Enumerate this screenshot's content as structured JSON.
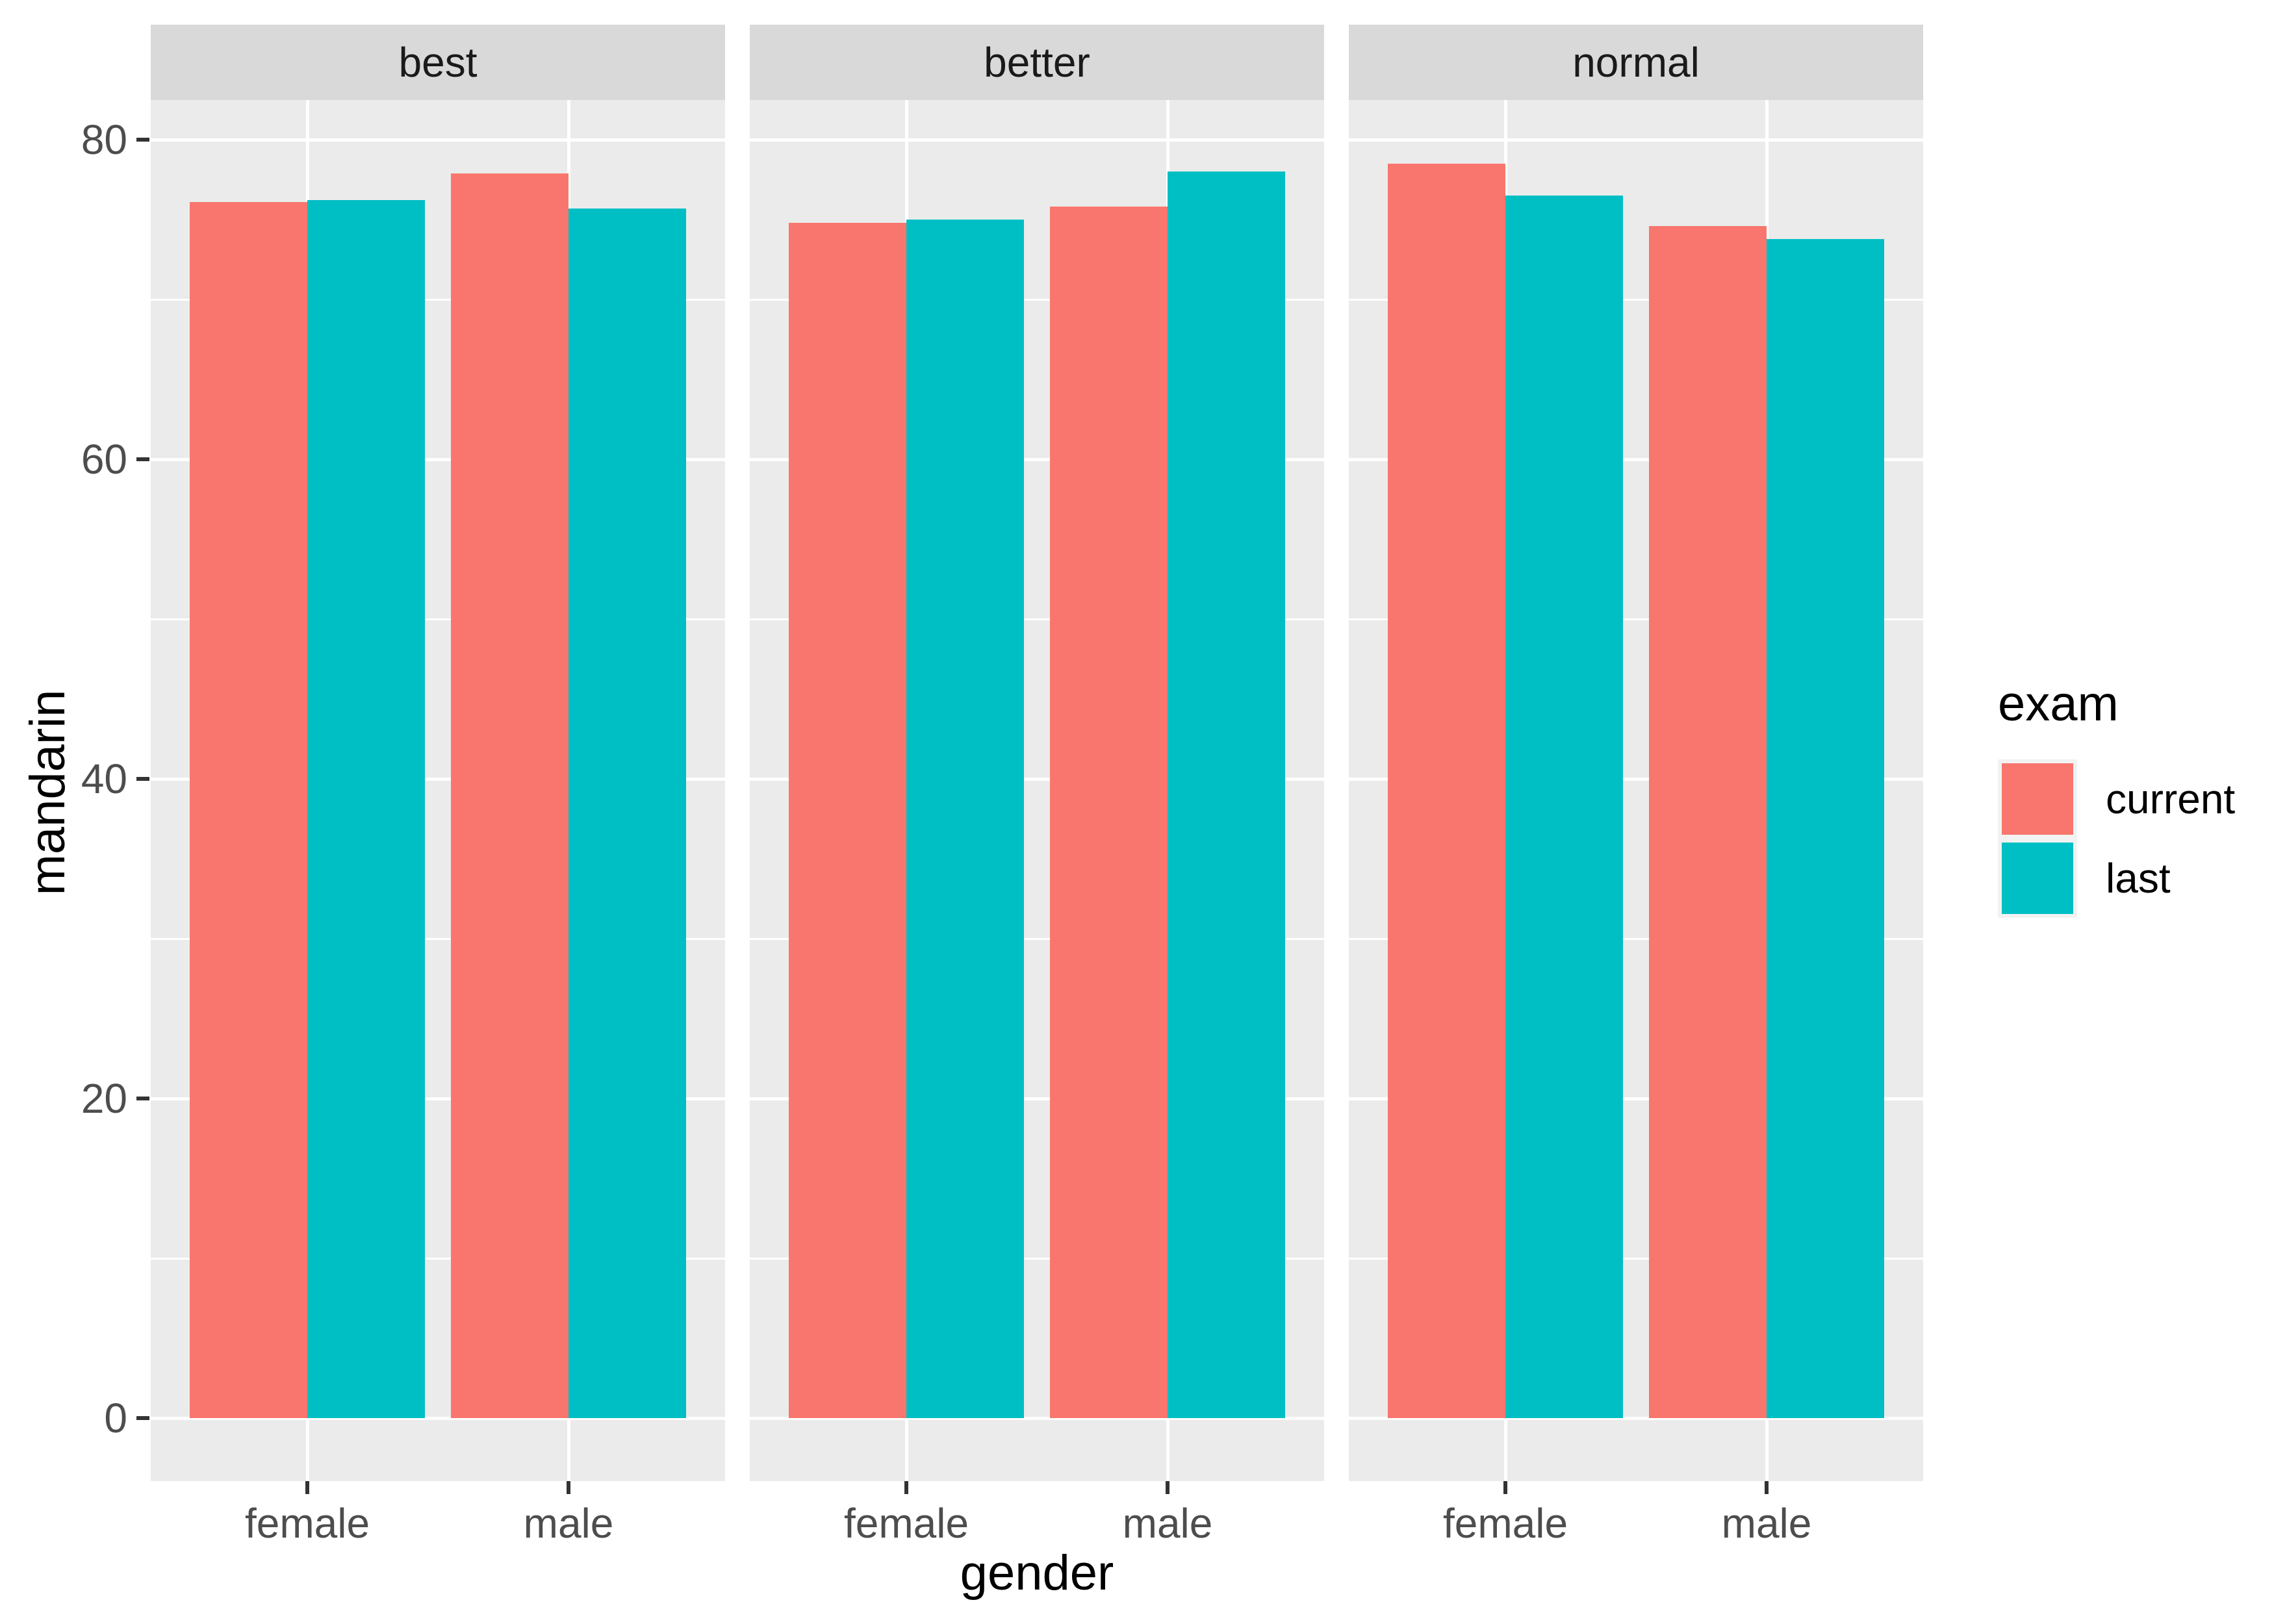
{
  "axes": {
    "x": {
      "title": "gender",
      "categories": [
        "female",
        "male"
      ]
    },
    "y": {
      "title": "mandarin",
      "ticks": [
        0,
        20,
        40,
        60,
        80
      ],
      "minor_ticks": [
        10,
        30,
        50,
        70
      ]
    }
  },
  "legend": {
    "title": "exam",
    "position": "right",
    "items": [
      {
        "label": "current",
        "color": "#F8766D"
      },
      {
        "label": "last",
        "color": "#00BFC4"
      }
    ]
  },
  "chart_data": {
    "type": "bar",
    "grouping": "dodge",
    "title": "",
    "xlabel": "gender",
    "ylabel": "mandarin",
    "ylim": [
      0,
      80
    ],
    "grid": "on",
    "legend_position": "right",
    "categories": [
      "female",
      "male"
    ],
    "facets": [
      {
        "label": "best",
        "series": [
          {
            "name": "current",
            "values": [
              76.1,
              77.9
            ]
          },
          {
            "name": "last",
            "values": [
              76.2,
              75.7
            ]
          }
        ]
      },
      {
        "label": "better",
        "series": [
          {
            "name": "current",
            "values": [
              74.8,
              75.8
            ]
          },
          {
            "name": "last",
            "values": [
              75.0,
              78.0
            ]
          }
        ]
      },
      {
        "label": "normal",
        "series": [
          {
            "name": "current",
            "values": [
              78.5,
              74.6
            ]
          },
          {
            "name": "last",
            "values": [
              76.5,
              73.8
            ]
          }
        ]
      }
    ],
    "series_colors": {
      "current": "#F8766D",
      "last": "#00BFC4"
    },
    "style": {
      "panel_background": "#EBEBEB",
      "strip_background": "#D9D9D9",
      "gridline_color": "#FFFFFF",
      "tick_color": "#333333",
      "tick_label_color": "#4D4D4D"
    }
  }
}
